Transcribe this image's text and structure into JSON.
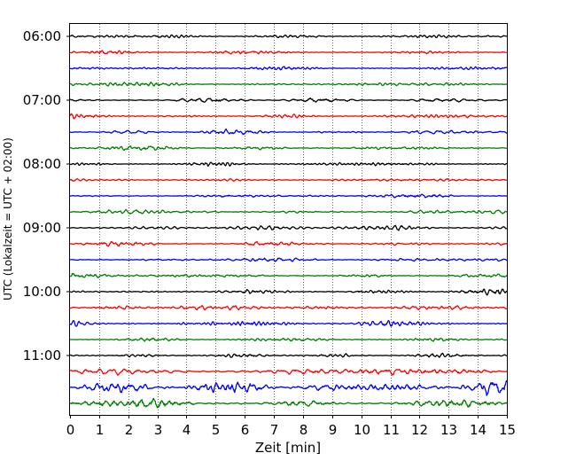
{
  "chart_data": {
    "type": "line",
    "title": "",
    "xlabel": "Zeit  [min]",
    "ylabel": "UTC (Lokalzeit = UTC + 02:00)",
    "xlim": [
      0,
      15
    ],
    "x_ticks": [
      "0",
      "1",
      "2",
      "3",
      "4",
      "5",
      "6",
      "7",
      "8",
      "9",
      "10",
      "11",
      "12",
      "13",
      "14",
      "15"
    ],
    "y_tick_labels": [
      "06:00",
      "07:00",
      "08:00",
      "09:00",
      "10:00",
      "11:00"
    ],
    "y_tick_rows": [
      0,
      4,
      8,
      12,
      16,
      20
    ],
    "grid": "vertical dotted at each minute",
    "row_interval_minutes": 15,
    "colors": [
      "#000000",
      "#ff0000",
      "#0000ff",
      "#008000"
    ],
    "traces": [
      {
        "start": "06:00",
        "color": "#000000",
        "amplitude": 0.25
      },
      {
        "start": "06:15",
        "color": "#ff0000",
        "amplitude": 0.25
      },
      {
        "start": "06:30",
        "color": "#0000ff",
        "amplitude": 0.25
      },
      {
        "start": "06:45",
        "color": "#008000",
        "amplitude": 0.25
      },
      {
        "start": "07:00",
        "color": "#000000",
        "amplitude": 0.3
      },
      {
        "start": "07:15",
        "color": "#ff0000",
        "amplitude": 0.25
      },
      {
        "start": "07:30",
        "color": "#0000ff",
        "amplitude": 0.25
      },
      {
        "start": "07:45",
        "color": "#008000",
        "amplitude": 0.25
      },
      {
        "start": "08:00",
        "color": "#000000",
        "amplitude": 0.25
      },
      {
        "start": "08:15",
        "color": "#ff0000",
        "amplitude": 0.25
      },
      {
        "start": "08:30",
        "color": "#0000ff",
        "amplitude": 0.25
      },
      {
        "start": "08:45",
        "color": "#008000",
        "amplitude": 0.25
      },
      {
        "start": "09:00",
        "color": "#000000",
        "amplitude": 0.25
      },
      {
        "start": "09:15",
        "color": "#ff0000",
        "amplitude": 0.25
      },
      {
        "start": "09:30",
        "color": "#0000ff",
        "amplitude": 0.25
      },
      {
        "start": "09:45",
        "color": "#008000",
        "amplitude": 0.25
      },
      {
        "start": "10:00",
        "color": "#000000",
        "amplitude": 0.3
      },
      {
        "start": "10:15",
        "color": "#ff0000",
        "amplitude": 0.3
      },
      {
        "start": "10:30",
        "color": "#0000ff",
        "amplitude": 0.3
      },
      {
        "start": "10:45",
        "color": "#008000",
        "amplitude": 0.3
      },
      {
        "start": "11:00",
        "color": "#000000",
        "amplitude": 0.3
      },
      {
        "start": "11:15",
        "color": "#ff0000",
        "amplitude": 0.45
      },
      {
        "start": "11:30",
        "color": "#0000ff",
        "amplitude": 0.75
      },
      {
        "start": "11:45",
        "color": "#008000",
        "amplitude": 0.6
      }
    ]
  }
}
